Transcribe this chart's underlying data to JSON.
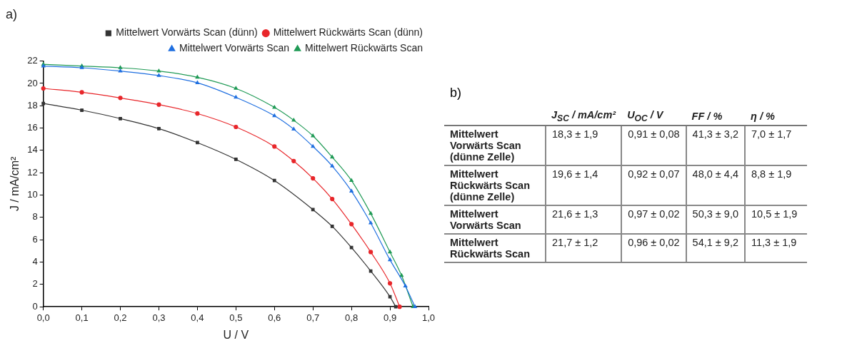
{
  "chart_data": [
    {
      "type": "line",
      "title": "a)",
      "xlabel": "U / V",
      "ylabel": "J / mA/cm²",
      "xlim": [
        0,
        1
      ],
      "ylim": [
        0,
        22
      ],
      "xticks": [
        {
          "value": 0,
          "label": "0,0"
        },
        {
          "value": 0.1,
          "label": "0,1"
        },
        {
          "value": 0.2,
          "label": "0,2"
        },
        {
          "value": 0.3,
          "label": "0,3"
        },
        {
          "value": 0.4,
          "label": "0,4"
        },
        {
          "value": 0.5,
          "label": "0,5"
        },
        {
          "value": 0.6,
          "label": "0,6"
        },
        {
          "value": 0.7,
          "label": "0,7"
        },
        {
          "value": 0.8,
          "label": "0,8"
        },
        {
          "value": 0.9,
          "label": "0,9"
        },
        {
          "value": 1,
          "label": "1,0"
        }
      ],
      "yticks": [
        0,
        2,
        4,
        6,
        8,
        10,
        12,
        14,
        16,
        18,
        20,
        22
      ],
      "grid": false,
      "legend": "top right",
      "line_style": "solid",
      "series": [
        {
          "name": "Mittelwert Vorwärts Scan (dünn)",
          "color": "#333333",
          "marker": "square",
          "x": [
            0,
            0.1,
            0.2,
            0.3,
            0.4,
            0.5,
            0.6,
            0.7,
            0.75,
            0.8,
            0.85,
            0.9,
            0.915
          ],
          "values": [
            18.2,
            17.6,
            16.85,
            15.95,
            14.7,
            13.2,
            11.3,
            8.7,
            7.2,
            5.3,
            3.2,
            0.9,
            0
          ]
        },
        {
          "name": "Mittelwert Rückwärts Scan (dünn)",
          "color": "#e8262a",
          "marker": "circle",
          "x": [
            0,
            0.1,
            0.2,
            0.3,
            0.4,
            0.5,
            0.6,
            0.65,
            0.7,
            0.75,
            0.8,
            0.85,
            0.9,
            0.925
          ],
          "values": [
            19.55,
            19.2,
            18.7,
            18.1,
            17.3,
            16.1,
            14.35,
            13.05,
            11.5,
            9.65,
            7.4,
            4.9,
            2.1,
            0
          ]
        },
        {
          "name": "Mittelwert Vorwärts Scan",
          "color": "#1f6fe0",
          "marker": "triangle",
          "x": [
            0,
            0.1,
            0.2,
            0.3,
            0.4,
            0.5,
            0.6,
            0.65,
            0.7,
            0.75,
            0.8,
            0.85,
            0.9,
            0.94,
            0.965
          ],
          "values": [
            21.55,
            21.4,
            21.1,
            20.7,
            20.05,
            18.75,
            17.1,
            15.9,
            14.35,
            12.6,
            10.35,
            7.5,
            4.2,
            1.85,
            0
          ]
        },
        {
          "name": "Mittelwert Rückwärts Scan",
          "color": "#1f9a55",
          "marker": "triangle",
          "x": [
            0,
            0.1,
            0.2,
            0.3,
            0.4,
            0.5,
            0.6,
            0.65,
            0.7,
            0.75,
            0.8,
            0.85,
            0.9,
            0.93,
            0.96
          ],
          "values": [
            21.7,
            21.55,
            21.4,
            21.1,
            20.55,
            19.55,
            17.85,
            16.7,
            15.3,
            13.4,
            11.3,
            8.35,
            4.9,
            2.8,
            0
          ]
        }
      ]
    },
    {
      "type": "other",
      "title": "b)",
      "categories": [
        "J$_{SC}$ / mA/cm²",
        "U$_{OC}$ / V",
        "FF / %",
        "η / %"
      ],
      "y_categories": [
        "Mittelwert Vorwärts Scan (dünne Zelle)",
        "Mittelwert Rückwärts Scan (dünne Zelle)",
        "Mittelwert Vorwärts Scan",
        "Mittelwert Rückwärts Scan"
      ],
      "cell_labels": [
        [
          "18,3 ± 1,9",
          "0,91 ± 0,08",
          "41,3 ± 3,2",
          "7,0 ± 1,7"
        ],
        [
          "19,6 ± 1,4",
          "0,92 ± 0,07",
          "48,0 ± 4,4",
          "8,8 ± 1,9"
        ],
        [
          "21,6 ± 1,3",
          "0,97 ± 0,02",
          "50,3 ± 9,0",
          "10,5 ± 1,9"
        ],
        [
          "21,7 ± 1,2",
          "0,96 ± 0,02",
          "54,1 ± 9,2",
          "11,3 ± 1,9"
        ]
      ]
    }
  ]
}
